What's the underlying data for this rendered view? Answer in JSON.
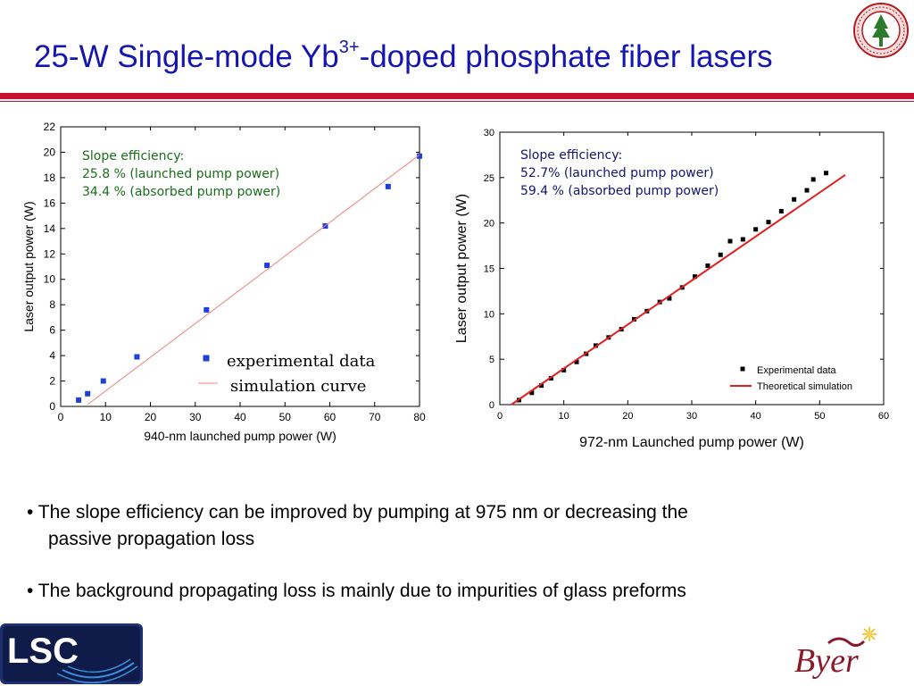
{
  "slide": {
    "title_main": "25-W Single-mode Yb",
    "title_sup": "3+",
    "title_rest": "-doped phosphate fiber lasers",
    "bullets": [
      "• The slope efficiency can be improved by pumping at 975 nm or decreasing the",
      "passive propagation loss",
      "•  The background propagating loss is mainly due to impurities of glass preforms"
    ],
    "logos": {
      "left": {
        "text": "LSC",
        "icon": "lsc-logo"
      },
      "right": {
        "text": "Byer",
        "icon": "byer-logo"
      },
      "seal": {
        "icon": "stanford-seal"
      }
    },
    "colors": {
      "title": "#1515b0",
      "rule": "#c8102e",
      "blue_marker": "#1f3fd6",
      "red_line": "#e02020",
      "green_text": "#1a6e1a",
      "navy_text": "#14146e"
    }
  },
  "chart_data": [
    {
      "type": "scatter",
      "xlabel": "940-nm launched pump power (W)",
      "ylabel": "Laser output power (W)",
      "xlim": [
        0,
        80
      ],
      "ylim": [
        0,
        22
      ],
      "xticks": [
        0,
        10,
        20,
        30,
        40,
        50,
        60,
        70,
        80
      ],
      "yticks": [
        0,
        2,
        4,
        6,
        8,
        10,
        12,
        14,
        16,
        18,
        20,
        22
      ],
      "annotation": [
        "Slope efficiency:",
        "25.8 % (launched pump power)",
        "34.4 % (absorbed pump power)"
      ],
      "legend": [
        "experimental data",
        "simulation curve"
      ],
      "legend_placement": "bottom-right",
      "series": [
        {
          "name": "experimental data",
          "kind": "points",
          "x": [
            4,
            6,
            9.5,
            17,
            32.5,
            46,
            59,
            73,
            80
          ],
          "y": [
            0.5,
            1.0,
            2.0,
            3.9,
            7.6,
            11.1,
            14.2,
            17.3,
            19.7
          ]
        },
        {
          "name": "simulation curve",
          "kind": "line",
          "x": [
            6,
            80
          ],
          "y": [
            0.15,
            19.8
          ]
        }
      ]
    },
    {
      "type": "scatter",
      "xlabel": "972-nm Launched pump power (W)",
      "ylabel": "Laser output power (W)",
      "xlim": [
        0,
        60
      ],
      "ylim": [
        0,
        30
      ],
      "xticks": [
        0,
        10,
        20,
        30,
        40,
        50,
        60
      ],
      "yticks": [
        0,
        5,
        10,
        15,
        20,
        25,
        30
      ],
      "annotation": [
        "Slope efficiency:",
        "52.7% (launched pump power)",
        "59.4 % (absorbed pump power)"
      ],
      "legend": [
        "Experimental data",
        "Theoretical simulation"
      ],
      "legend_placement": "bottom-right",
      "series": [
        {
          "name": "Experimental data",
          "kind": "points",
          "x": [
            3,
            5,
            6.5,
            8,
            10,
            12,
            13.5,
            15,
            17,
            19,
            21,
            23,
            25,
            26.5,
            28.5,
            30.5,
            32.5,
            34.5,
            36,
            38,
            40,
            42,
            44,
            46,
            48,
            49,
            51
          ],
          "y": [
            0.5,
            1.3,
            2.1,
            2.9,
            3.8,
            4.7,
            5.6,
            6.5,
            7.4,
            8.3,
            9.4,
            10.3,
            11.3,
            11.7,
            12.9,
            14.1,
            15.3,
            16.5,
            18.0,
            18.2,
            19.3,
            20.1,
            21.3,
            22.6,
            23.6,
            24.8,
            25.5
          ]
        },
        {
          "name": "Theoretical simulation",
          "kind": "line",
          "x": [
            1.8,
            54
          ],
          "y": [
            0,
            25.3
          ]
        }
      ]
    }
  ]
}
